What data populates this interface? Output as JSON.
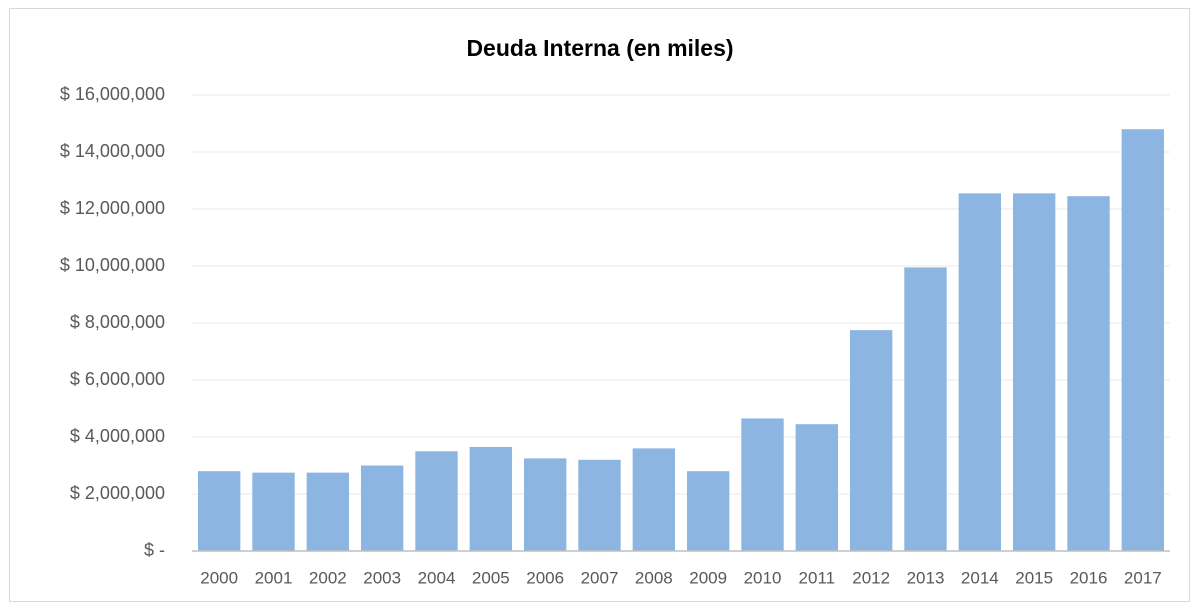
{
  "chart_data": {
    "type": "bar",
    "title": "Deuda Interna (en miles)",
    "categories": [
      "2000",
      "2001",
      "2002",
      "2003",
      "2004",
      "2005",
      "2006",
      "2007",
      "2008",
      "2009",
      "2010",
      "2011",
      "2012",
      "2013",
      "2014",
      "2015",
      "2016",
      "2017"
    ],
    "values": [
      2800000,
      2750000,
      2750000,
      3000000,
      3500000,
      3650000,
      3250000,
      3200000,
      3600000,
      2800000,
      4650000,
      4450000,
      7750000,
      9950000,
      12550000,
      12550000,
      12450000,
      14800000
    ],
    "color": "#8cb6e1",
    "ylim": [
      0,
      16000000
    ],
    "yticks": [
      {
        "value": 0,
        "label": "$ -"
      },
      {
        "value": 2000000,
        "label": "$ 2,000,000"
      },
      {
        "value": 4000000,
        "label": "$ 4,000,000"
      },
      {
        "value": 6000000,
        "label": "$ 6,000,000"
      },
      {
        "value": 8000000,
        "label": "$ 8,000,000"
      },
      {
        "value": 10000000,
        "label": "$ 10,000,000"
      },
      {
        "value": 12000000,
        "label": "$ 12,000,000"
      },
      {
        "value": 14000000,
        "label": "$ 14,000,000"
      },
      {
        "value": 16000000,
        "label": "$ 16,000,000"
      }
    ],
    "grid": true
  }
}
